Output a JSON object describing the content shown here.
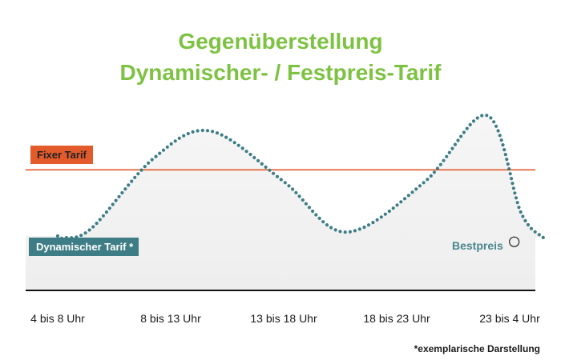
{
  "title_line_1": "Gegenüberstellung",
  "title_line_2": "Dynamischer- / Festpreis-Tarif",
  "footnote": "*exemplarische Darstellung",
  "colors": {
    "title": "#7dc242",
    "fixed": "#e35a2b",
    "dynamic": "#3f7d86",
    "area": "#f2f2f2",
    "axis": "#111111"
  },
  "chart_data": {
    "type": "line",
    "categories": [
      "4 bis 8 Uhr",
      "8 bis 13 Uhr",
      "13 bis 18 Uhr",
      "18 bis 23 Uhr",
      "23 bis 4 Uhr"
    ],
    "series": [
      {
        "name": "Fixer Tarif",
        "style": "solid-line",
        "values": [
          0.62,
          0.62,
          0.62,
          0.62,
          0.62
        ]
      },
      {
        "name": "Dynamischer Tarif *",
        "style": "dotted-curve-with-area",
        "x": [
          0,
          0.05,
          0.3,
          0.85,
          1.35,
          2.0,
          2.55,
          3.25,
          3.8,
          4.1,
          4.3
        ],
        "values": [
          0.28,
          0.27,
          0.32,
          0.68,
          0.82,
          0.56,
          0.3,
          0.56,
          0.9,
          0.4,
          0.27
        ]
      }
    ],
    "annotations": [
      {
        "text": "Bestpreis",
        "x": 4.04,
        "y": 0.25,
        "marker": "circle"
      }
    ],
    "ylim": [
      0,
      1
    ],
    "xlabel": "",
    "ylabel": "",
    "legend": "inline-tags"
  }
}
